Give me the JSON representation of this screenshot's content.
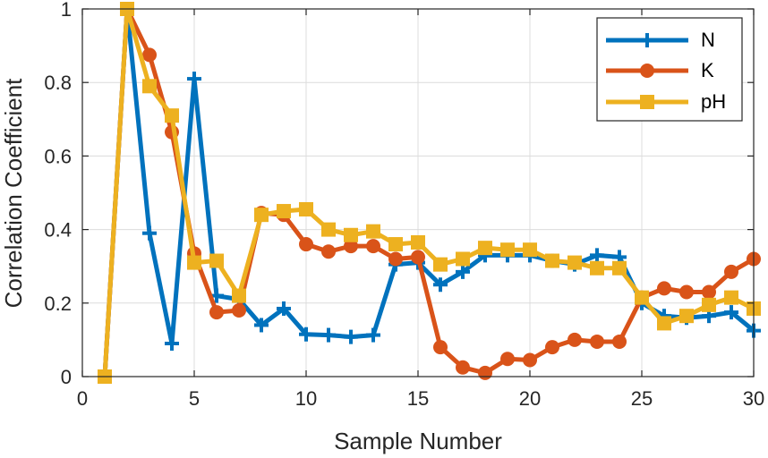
{
  "chart_data": {
    "type": "line",
    "title": "",
    "xlabel": "Sample Number",
    "ylabel": "Correlation Coefficient",
    "xlim": [
      0,
      30
    ],
    "ylim": [
      0,
      1
    ],
    "xticks": [
      0,
      5,
      10,
      15,
      20,
      25,
      30
    ],
    "yticks": [
      0,
      0.2,
      0.4,
      0.6,
      0.8,
      1
    ],
    "ytick_labels": [
      "0",
      "0.2",
      "0.4",
      "0.6",
      "0.8",
      "1"
    ],
    "grid": true,
    "legend_position": "top-right",
    "x": [
      1,
      2,
      3,
      4,
      5,
      6,
      7,
      8,
      9,
      10,
      11,
      12,
      13,
      14,
      15,
      16,
      17,
      18,
      19,
      20,
      21,
      22,
      23,
      24,
      25,
      26,
      27,
      28,
      29,
      30
    ],
    "series": [
      {
        "name": "N",
        "color": "#0072BD",
        "marker": "plus",
        "values": [
          0,
          1,
          0.39,
          0.09,
          0.81,
          0.22,
          0.21,
          0.14,
          0.185,
          0.115,
          0.113,
          0.108,
          0.113,
          0.305,
          0.31,
          0.25,
          0.285,
          0.33,
          0.33,
          0.33,
          0.315,
          0.305,
          0.33,
          0.325,
          0.2,
          0.165,
          0.16,
          0.165,
          0.175,
          0.125
        ]
      },
      {
        "name": "K",
        "color": "#D95319",
        "marker": "circle",
        "values": [
          0,
          1,
          0.875,
          0.665,
          0.335,
          0.175,
          0.18,
          0.445,
          0.44,
          0.36,
          0.34,
          0.355,
          0.355,
          0.32,
          0.325,
          0.08,
          0.025,
          0.01,
          0.048,
          0.045,
          0.08,
          0.1,
          0.095,
          0.095,
          0.215,
          0.24,
          0.23,
          0.23,
          0.285,
          0.32
        ]
      },
      {
        "name": "pH",
        "color": "#EDB120",
        "marker": "square",
        "values": [
          0,
          1,
          0.79,
          0.71,
          0.31,
          0.315,
          0.22,
          0.44,
          0.45,
          0.455,
          0.4,
          0.385,
          0.395,
          0.36,
          0.365,
          0.305,
          0.32,
          0.35,
          0.345,
          0.345,
          0.315,
          0.31,
          0.295,
          0.295,
          0.215,
          0.145,
          0.165,
          0.195,
          0.215,
          0.185
        ]
      }
    ]
  }
}
